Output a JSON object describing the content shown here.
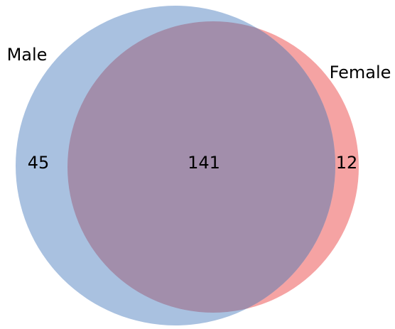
{
  "chart_data": {
    "type": "venn",
    "sets": [
      {
        "name": "Male",
        "color": "#a9c1e0",
        "only": 45
      },
      {
        "name": "Female",
        "color": "#f5a3a3",
        "only": 12
      }
    ],
    "intersection": 141,
    "intersection_color": "#a28eab"
  }
}
